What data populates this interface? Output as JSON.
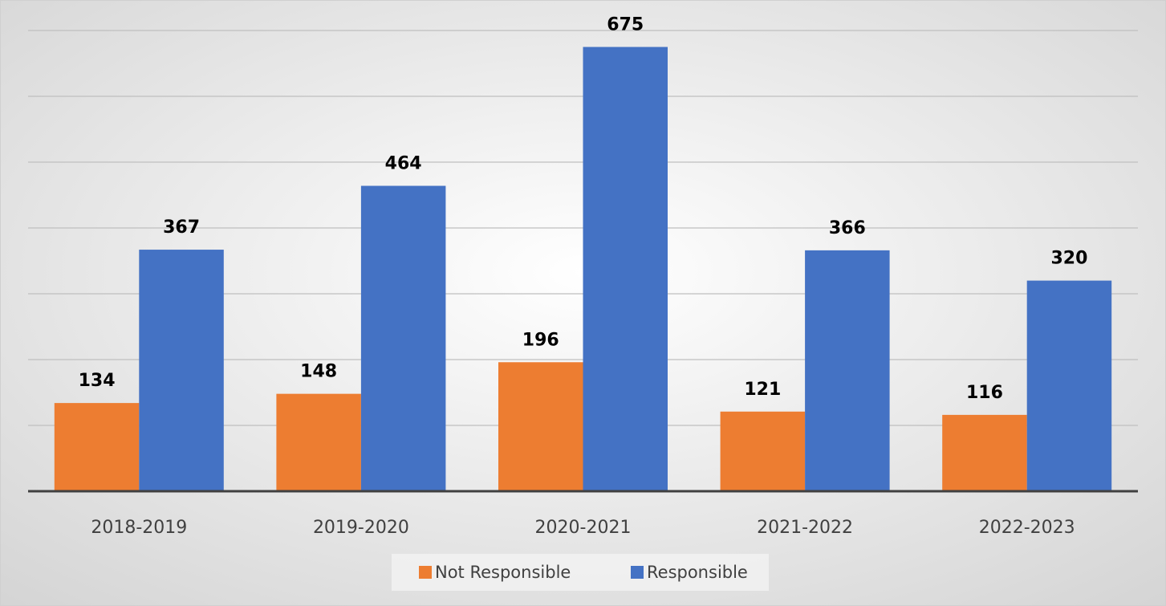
{
  "chart_data": {
    "type": "bar",
    "categories": [
      "2018-2019",
      "2019-2020",
      "2020-2021",
      "2021-2022",
      "2022-2023"
    ],
    "series": [
      {
        "name": "Not Responsible",
        "color": "#ed7d31",
        "values": [
          134,
          148,
          196,
          121,
          116
        ]
      },
      {
        "name": "Responsible",
        "color": "#4472c4",
        "values": [
          367,
          464,
          675,
          366,
          320
        ]
      }
    ],
    "ylim": [
      0,
      700
    ],
    "yticks": [
      0,
      100,
      200,
      300,
      400,
      500,
      600,
      700
    ],
    "grid": true,
    "legend": "bottom"
  }
}
